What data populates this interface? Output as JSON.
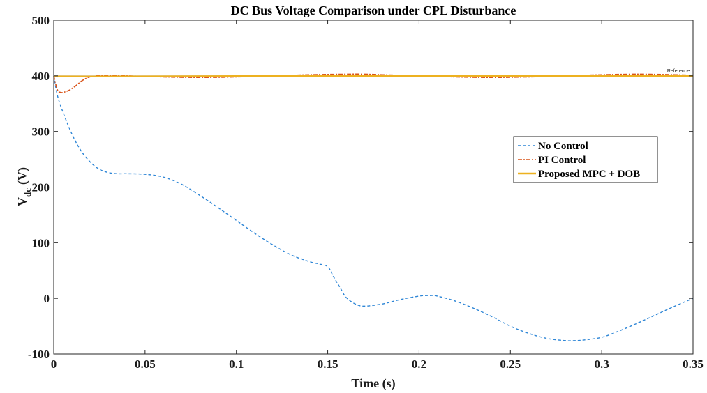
{
  "chart_data": {
    "type": "line",
    "title": "DC Bus Voltage Comparison under CPL Disturbance",
    "xlabel": "Time (s)",
    "ylabel_main": "V",
    "ylabel_sub": "dc",
    "ylabel_unit": "(V)",
    "xlim": [
      0,
      0.35
    ],
    "ylim": [
      -100,
      500
    ],
    "x_ticks": [
      0,
      0.05,
      0.1,
      0.15,
      0.2,
      0.25,
      0.3,
      0.35
    ],
    "y_ticks": [
      -100,
      0,
      100,
      200,
      300,
      400,
      500
    ],
    "x_tick_labels": [
      "0",
      "0.05",
      "0.1",
      "0.15",
      "0.2",
      "0.25",
      "0.3",
      "0.35"
    ],
    "y_tick_labels": [
      "-100",
      "0",
      "100",
      "200",
      "300",
      "400",
      "500"
    ],
    "grid": false,
    "legend_position": "center-right",
    "annotation": "Reference",
    "series": [
      {
        "name": "No Control",
        "color": "#2e86d6",
        "style": "dashed",
        "x": [
          0,
          0.002,
          0.005,
          0.01,
          0.015,
          0.02,
          0.025,
          0.03,
          0.035,
          0.04,
          0.05,
          0.06,
          0.07,
          0.08,
          0.09,
          0.1,
          0.11,
          0.12,
          0.13,
          0.14,
          0.145,
          0.15,
          0.153,
          0.157,
          0.16,
          0.165,
          0.17,
          0.18,
          0.19,
          0.2,
          0.205,
          0.21,
          0.22,
          0.23,
          0.24,
          0.25,
          0.26,
          0.27,
          0.28,
          0.285,
          0.29,
          0.3,
          0.31,
          0.32,
          0.33,
          0.34,
          0.35
        ],
        "y": [
          400,
          365,
          335,
          295,
          265,
          245,
          232,
          226,
          224,
          224,
          223,
          218,
          205,
          185,
          163,
          140,
          117,
          96,
          78,
          66,
          62,
          57,
          40,
          18,
          2,
          -10,
          -14,
          -10,
          -2,
          4,
          5,
          4,
          -5,
          -18,
          -33,
          -50,
          -63,
          -72,
          -76,
          -76,
          -75,
          -70,
          -58,
          -44,
          -29,
          -14,
          0
        ]
      },
      {
        "name": "PI Control",
        "color": "#d95319",
        "style": "dash-dot",
        "x": [
          0,
          0.002,
          0.004,
          0.006,
          0.009,
          0.012,
          0.015,
          0.018,
          0.021,
          0.025,
          0.03,
          0.04,
          0.06,
          0.08,
          0.1,
          0.12,
          0.14,
          0.16,
          0.17,
          0.18,
          0.2,
          0.22,
          0.24,
          0.26,
          0.28,
          0.3,
          0.32,
          0.34,
          0.35
        ],
        "y": [
          400,
          375,
          370,
          371,
          375,
          382,
          390,
          396,
          399,
          400.5,
          401,
          400,
          398,
          397,
          398,
          400,
          402,
          403,
          403,
          402,
          400,
          398,
          397,
          398,
          400,
          402,
          403,
          402,
          401
        ]
      },
      {
        "name": "Proposed MPC + DOB",
        "color": "#edb120",
        "style": "solid",
        "x": [
          0,
          0.05,
          0.1,
          0.15,
          0.2,
          0.25,
          0.3,
          0.35
        ],
        "y": [
          399,
          399,
          399.5,
          400,
          400,
          400,
          400,
          400
        ]
      },
      {
        "name": "Reference",
        "color": "#6b7fb0",
        "style": "solid-thin",
        "x": [
          0,
          0.35
        ],
        "y": [
          400,
          400
        ]
      }
    ]
  }
}
